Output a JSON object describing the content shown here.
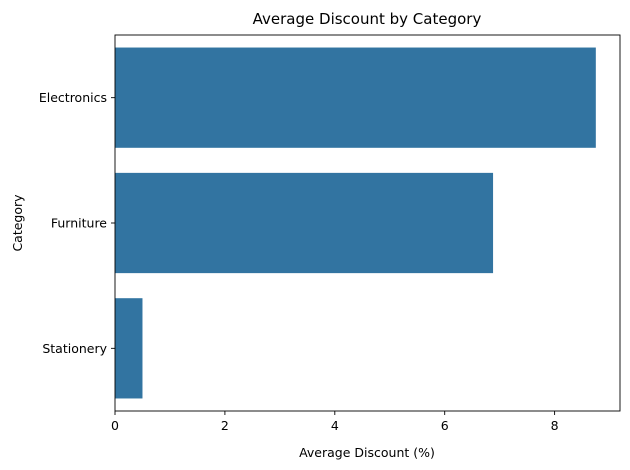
{
  "chart_data": {
    "type": "bar",
    "orientation": "horizontal",
    "title": "Average Discount by Category",
    "xlabel": "Average Discount (%)",
    "ylabel": "Category",
    "categories": [
      "Electronics",
      "Furniture",
      "Stationery"
    ],
    "values": [
      8.75,
      6.88,
      0.5
    ],
    "xlim": [
      0,
      9.19
    ],
    "xticks": [
      0,
      2,
      4,
      6,
      8
    ],
    "grid": false,
    "bar_color": "#3274a1"
  }
}
